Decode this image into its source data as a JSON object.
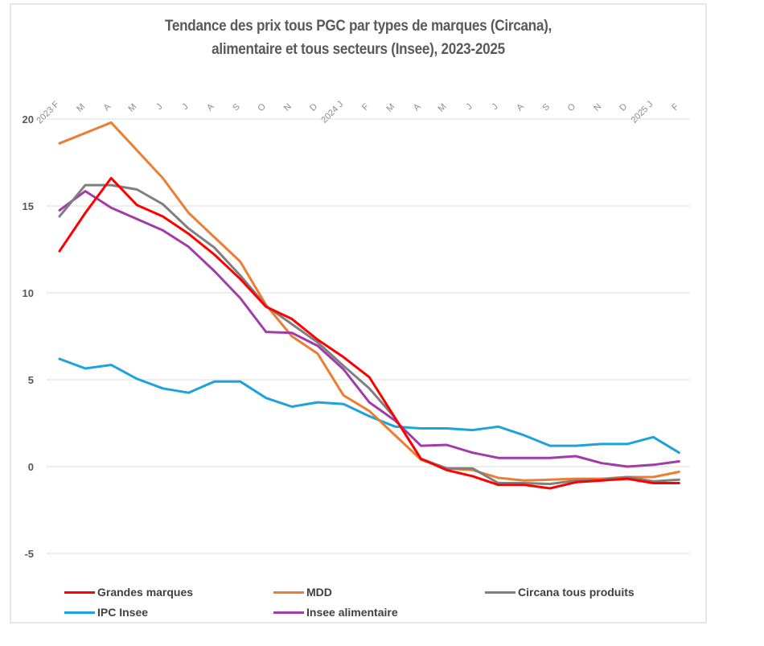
{
  "chart_data": {
    "type": "line",
    "title": "Tendance des prix tous PGC par types de marques (Circana), alimentaire et tous secteurs (Insee), 2023-2025",
    "title_lines": [
      "Tendance des prix tous PGC par types de marques (Circana),",
      "alimentaire et tous secteurs (Insee), 2023-2025"
    ],
    "xlabel": "",
    "ylabel": "",
    "categories": [
      "2023 F",
      "M",
      "A",
      "M",
      "J",
      "J",
      "A",
      "S",
      "O",
      "N",
      "D",
      "2024 J",
      "F",
      "M",
      "A",
      "M",
      "J",
      "J",
      "A",
      "S",
      "O",
      "N",
      "D",
      "2025 J",
      "F"
    ],
    "ylim": [
      -5,
      20
    ],
    "yticks": [
      20,
      15,
      10,
      5,
      0,
      -5
    ],
    "grid": true,
    "legend_position": "bottom",
    "series": [
      {
        "name": "Grandes marques",
        "color": "#ff0000",
        "values": [
          12.4,
          14.6,
          16.6,
          15.05,
          14.4,
          13.4,
          12.2,
          10.8,
          9.2,
          8.5,
          7.3,
          6.3,
          5.15,
          2.8,
          0.45,
          -0.2,
          -0.55,
          -1.05,
          -1.05,
          -1.25,
          -0.9,
          -0.8,
          -0.7,
          -0.95,
          -0.95
        ]
      },
      {
        "name": "MDD",
        "color": "#ed7d31",
        "values": [
          18.6,
          19.2,
          19.8,
          18.2,
          16.6,
          14.6,
          13.2,
          11.8,
          9.3,
          7.5,
          6.5,
          4.1,
          3.2,
          1.8,
          0.4,
          -0.1,
          -0.2,
          -0.65,
          -0.8,
          -0.75,
          -0.7,
          -0.7,
          -0.6,
          -0.6,
          -0.3
        ]
      },
      {
        "name": "Circana tous produits",
        "color": "#7f7f7f",
        "values": [
          14.4,
          16.2,
          16.2,
          15.95,
          15.1,
          13.7,
          12.6,
          11.0,
          9.25,
          8.2,
          7.15,
          5.8,
          4.5,
          2.8,
          0.45,
          -0.1,
          -0.1,
          -0.95,
          -0.95,
          -1.0,
          -0.8,
          -0.75,
          -0.6,
          -0.85,
          -0.75
        ]
      },
      {
        "name": "IPC Insee",
        "color": "#1ca3dc",
        "values": [
          6.2,
          5.65,
          5.85,
          5.05,
          4.5,
          4.25,
          4.9,
          4.9,
          3.95,
          3.45,
          3.7,
          3.6,
          2.9,
          2.3,
          2.2,
          2.2,
          2.1,
          2.3,
          1.8,
          1.2,
          1.2,
          1.3,
          1.3,
          1.7,
          0.8
        ]
      },
      {
        "name": "Insee alimentaire",
        "color": "#a03ca8",
        "values": [
          14.75,
          15.85,
          14.9,
          14.25,
          13.6,
          12.65,
          11.25,
          9.7,
          7.75,
          7.7,
          6.95,
          5.6,
          3.7,
          2.65,
          1.2,
          1.25,
          0.8,
          0.5,
          0.5,
          0.5,
          0.6,
          0.2,
          0.0,
          0.1,
          0.3
        ]
      }
    ]
  },
  "legend": {
    "items": [
      {
        "label": "Grandes marques",
        "color": "#ff0000"
      },
      {
        "label": "MDD",
        "color": "#ed7d31"
      },
      {
        "label": "Circana tous produits",
        "color": "#7f7f7f"
      },
      {
        "label": "IPC Insee",
        "color": "#1ca3dc"
      },
      {
        "label": "Insee alimentaire",
        "color": "#a03ca8"
      }
    ]
  }
}
